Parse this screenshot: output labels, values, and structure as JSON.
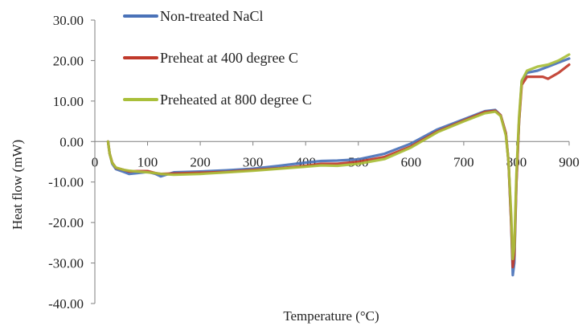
{
  "chart_data": {
    "type": "line",
    "title": "",
    "xlabel": "Temperature (°C)",
    "ylabel": "Heat flow (mW)",
    "xlim": [
      0,
      900
    ],
    "ylim": [
      -40,
      30
    ],
    "x_ticks": [
      "0",
      "100",
      "200",
      "300",
      "400",
      "500",
      "600",
      "700",
      "800",
      "900"
    ],
    "y_ticks": [
      "30.00",
      "20.00",
      "10.00",
      "0.00",
      "-10.00",
      "-20.00",
      "-30.00",
      "-40.00"
    ],
    "legend_position": "top-left",
    "grid": false,
    "series": [
      {
        "name": "Non-treated NaCl",
        "color": "#4a72b8",
        "points": [
          [
            25,
            0
          ],
          [
            28,
            -3
          ],
          [
            33,
            -5.5
          ],
          [
            40,
            -6.8
          ],
          [
            55,
            -7.5
          ],
          [
            65,
            -8
          ],
          [
            80,
            -7.8
          ],
          [
            100,
            -7.5
          ],
          [
            115,
            -8
          ],
          [
            125,
            -8.6
          ],
          [
            150,
            -7.6
          ],
          [
            200,
            -7.4
          ],
          [
            250,
            -7.1
          ],
          [
            300,
            -6.7
          ],
          [
            350,
            -6
          ],
          [
            400,
            -5.2
          ],
          [
            430,
            -4.8
          ],
          [
            460,
            -4.7
          ],
          [
            500,
            -4.4
          ],
          [
            550,
            -3
          ],
          [
            600,
            -0.5
          ],
          [
            650,
            3
          ],
          [
            700,
            5.5
          ],
          [
            740,
            7.5
          ],
          [
            760,
            7.8
          ],
          [
            770,
            6.5
          ],
          [
            780,
            2
          ],
          [
            785,
            -5
          ],
          [
            790,
            -20
          ],
          [
            793,
            -33
          ],
          [
            796,
            -30
          ],
          [
            800,
            -10
          ],
          [
            805,
            5
          ],
          [
            810,
            15
          ],
          [
            820,
            17
          ],
          [
            840,
            17.5
          ],
          [
            860,
            18.5
          ],
          [
            880,
            19.5
          ],
          [
            900,
            20.5
          ]
        ]
      },
      {
        "name": "Preheat at 400 degree C",
        "color": "#c0392b",
        "points": [
          [
            25,
            0
          ],
          [
            28,
            -3
          ],
          [
            33,
            -5.2
          ],
          [
            40,
            -6.5
          ],
          [
            55,
            -7
          ],
          [
            65,
            -7.4
          ],
          [
            80,
            -7.3
          ],
          [
            100,
            -7.3
          ],
          [
            115,
            -7.8
          ],
          [
            125,
            -8
          ],
          [
            150,
            -7.9
          ],
          [
            200,
            -7.7
          ],
          [
            250,
            -7.5
          ],
          [
            300,
            -7
          ],
          [
            350,
            -6.6
          ],
          [
            400,
            -6
          ],
          [
            430,
            -5.5
          ],
          [
            460,
            -5.5
          ],
          [
            500,
            -5
          ],
          [
            550,
            -3.8
          ],
          [
            600,
            -1.2
          ],
          [
            650,
            2.5
          ],
          [
            700,
            5.2
          ],
          [
            740,
            7.3
          ],
          [
            760,
            7.6
          ],
          [
            770,
            6.5
          ],
          [
            780,
            2
          ],
          [
            785,
            -5
          ],
          [
            790,
            -20
          ],
          [
            793,
            -31
          ],
          [
            796,
            -28
          ],
          [
            800,
            -10
          ],
          [
            805,
            5
          ],
          [
            810,
            14
          ],
          [
            820,
            16
          ],
          [
            840,
            16
          ],
          [
            850,
            16
          ],
          [
            860,
            15.5
          ],
          [
            880,
            17
          ],
          [
            900,
            19
          ]
        ]
      },
      {
        "name": "Preheated at 800 degree C",
        "color": "#a9bf3a",
        "points": [
          [
            25,
            0
          ],
          [
            28,
            -3
          ],
          [
            33,
            -5.3
          ],
          [
            40,
            -6.4
          ],
          [
            55,
            -7
          ],
          [
            65,
            -7.2
          ],
          [
            80,
            -7.4
          ],
          [
            100,
            -7.6
          ],
          [
            115,
            -7.8
          ],
          [
            125,
            -8
          ],
          [
            150,
            -8.2
          ],
          [
            200,
            -8
          ],
          [
            250,
            -7.6
          ],
          [
            300,
            -7.2
          ],
          [
            350,
            -6.7
          ],
          [
            400,
            -6.2
          ],
          [
            430,
            -5.9
          ],
          [
            460,
            -6
          ],
          [
            500,
            -5.5
          ],
          [
            550,
            -4.3
          ],
          [
            600,
            -1.5
          ],
          [
            650,
            2.3
          ],
          [
            700,
            5
          ],
          [
            740,
            7
          ],
          [
            760,
            7.4
          ],
          [
            770,
            6.3
          ],
          [
            780,
            1.5
          ],
          [
            785,
            -5
          ],
          [
            790,
            -18
          ],
          [
            793,
            -29
          ],
          [
            796,
            -26
          ],
          [
            800,
            -8
          ],
          [
            805,
            6
          ],
          [
            810,
            15
          ],
          [
            820,
            17.5
          ],
          [
            840,
            18.5
          ],
          [
            860,
            19
          ],
          [
            880,
            20
          ],
          [
            900,
            21.5
          ]
        ]
      }
    ]
  }
}
